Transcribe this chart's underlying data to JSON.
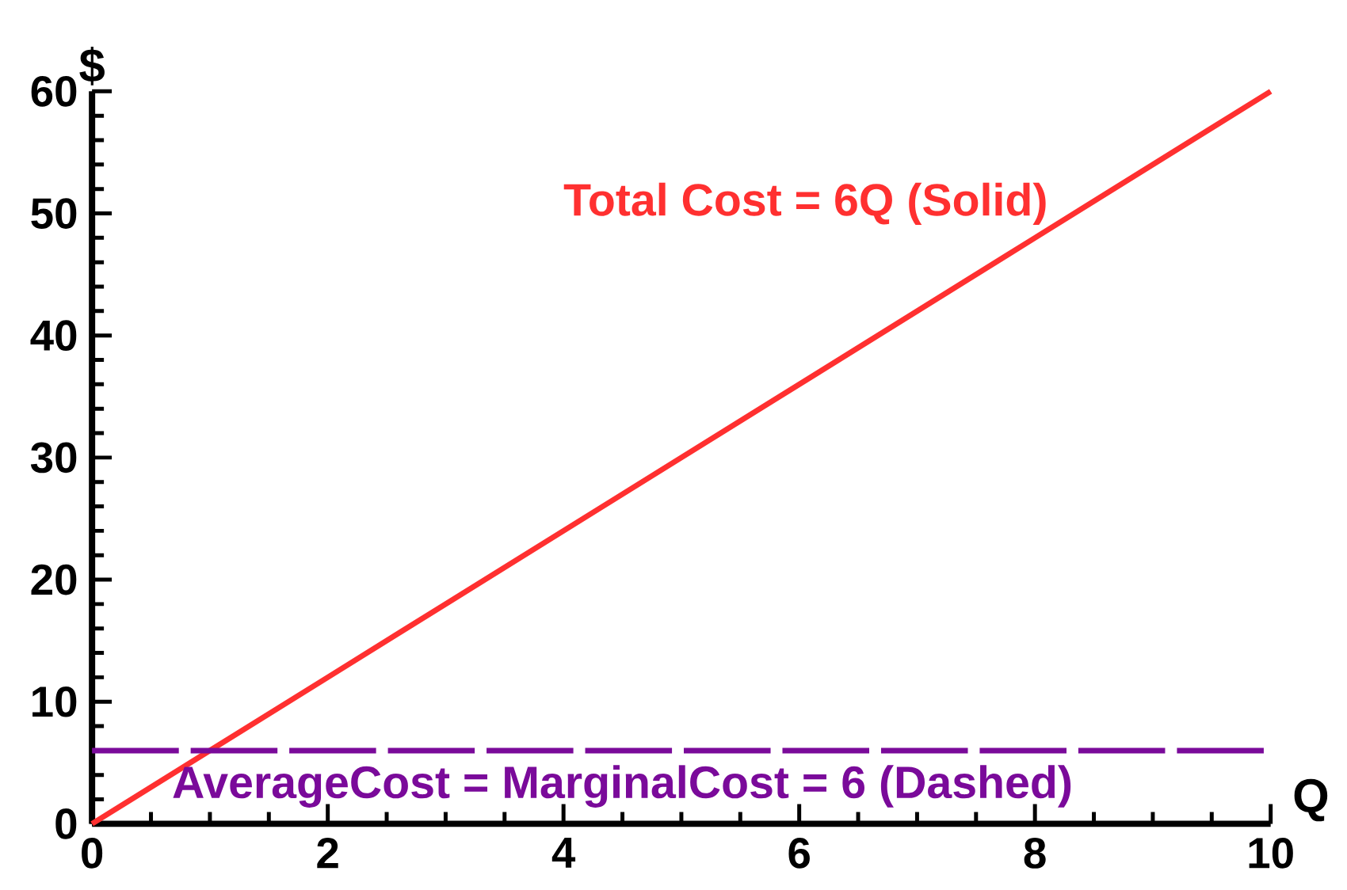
{
  "chart_data": {
    "type": "line",
    "xlabel": "Q",
    "ylabel": "$",
    "xlim": [
      0,
      10
    ],
    "ylim": [
      0,
      60
    ],
    "xticks": [
      0,
      2,
      4,
      6,
      8,
      10
    ],
    "yticks": [
      0,
      10,
      20,
      30,
      40,
      50,
      60
    ],
    "x": [
      0,
      2,
      4,
      6,
      8,
      10
    ],
    "series": [
      {
        "name": "Total Cost = 6Q (Solid)",
        "color": "#ff3030",
        "values": [
          0,
          12,
          24,
          36,
          48,
          60
        ],
        "line_style": "solid"
      },
      {
        "name": "AverageCost = MarginalCost = 6 (Dashed)",
        "color": "#7a0a9a",
        "values": [
          6,
          6,
          6,
          6,
          6,
          6
        ],
        "line_style": "dashed"
      }
    ],
    "grid": false,
    "legend": false,
    "marker": "none"
  }
}
